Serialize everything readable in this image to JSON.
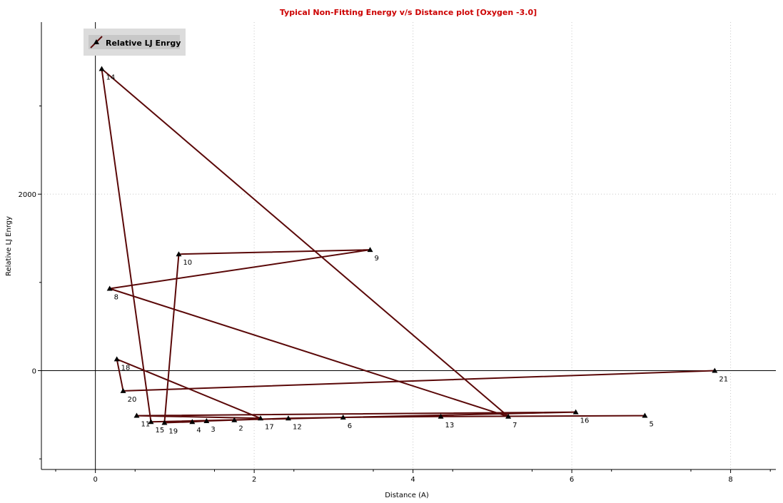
{
  "chart_data": {
    "type": "line",
    "title": "Typical Non-Fitting Energy v/s Distance plot [Oxygen -3.0]",
    "xlabel": "Distance (A)",
    "ylabel": "Relative LJ Enrgy",
    "xlim": [
      -0.68,
      8.57
    ],
    "ylim": [
      -1120,
      3950
    ],
    "x_ticks": [
      0,
      2,
      4,
      6,
      8
    ],
    "y_ticks": [
      0,
      2000
    ],
    "grid": true,
    "legend": "top-left",
    "series": [
      {
        "name": "Relative LJ Enrgy",
        "color": "#5a0808",
        "points": [
          {
            "label": "21",
            "x": 7.8,
            "y": 0
          },
          {
            "label": "20",
            "x": 0.35,
            "y": -230
          },
          {
            "label": "18",
            "x": 0.27,
            "y": 130
          },
          {
            "label": "17",
            "x": 2.08,
            "y": -540
          },
          {
            "label": "11",
            "x": 0.52,
            "y": -510
          },
          {
            "label": "16",
            "x": 6.05,
            "y": -470
          },
          {
            "label": "15",
            "x": 0.7,
            "y": -580
          },
          {
            "label": "14",
            "x": 0.08,
            "y": 3420
          },
          {
            "label": "7",
            "x": 5.2,
            "y": -520
          },
          {
            "label": "8",
            "x": 0.18,
            "y": 930
          },
          {
            "label": "9",
            "x": 3.46,
            "y": 1370
          },
          {
            "label": "10",
            "x": 1.05,
            "y": 1320
          },
          {
            "label": "19",
            "x": 0.87,
            "y": -590
          },
          {
            "label": "4",
            "x": 1.22,
            "y": -580
          },
          {
            "label": "3",
            "x": 1.4,
            "y": -570
          },
          {
            "label": "2",
            "x": 1.75,
            "y": -560
          },
          {
            "label": "12",
            "x": 2.43,
            "y": -540
          },
          {
            "label": "6",
            "x": 3.12,
            "y": -530
          },
          {
            "label": "13",
            "x": 4.35,
            "y": -520
          },
          {
            "label": "5",
            "x": 6.92,
            "y": -510
          }
        ]
      }
    ]
  }
}
